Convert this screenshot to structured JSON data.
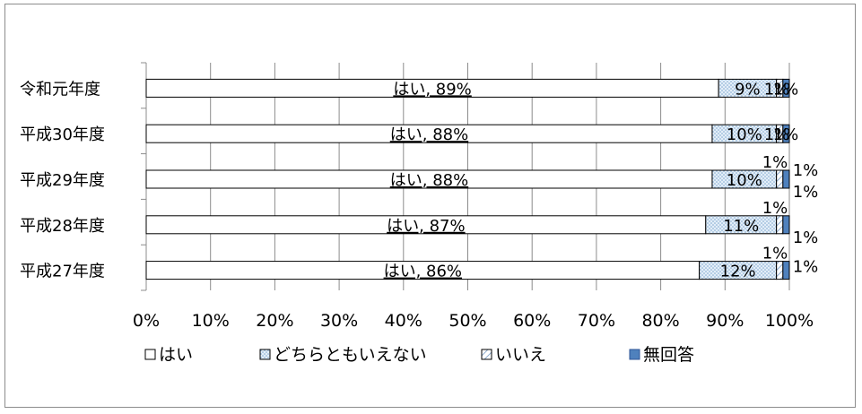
{
  "chart_data": {
    "type": "bar",
    "orientation": "horizontal",
    "stacked": "percent",
    "title": "",
    "xlabel": "",
    "ylabel": "",
    "xlim": [
      0,
      100
    ],
    "x_ticks": [
      "0%",
      "10%",
      "20%",
      "30%",
      "40%",
      "50%",
      "60%",
      "70%",
      "80%",
      "90%",
      "100%"
    ],
    "grid": "vertical",
    "legend_position": "bottom",
    "categories": [
      "令和元年度",
      "平成30年度",
      "平成29年度",
      "平成28年度",
      "平成27年度"
    ],
    "series": [
      {
        "name": "はい",
        "values": [
          89,
          88,
          88,
          87,
          86
        ],
        "labels": [
          "はい, 89%",
          "はい, 88%",
          "はい, 88%",
          "はい, 87%",
          "はい, 86%"
        ],
        "fill": "#ffffff",
        "pattern": "none"
      },
      {
        "name": "どちらともいえない",
        "values": [
          9,
          10,
          10,
          11,
          12
        ],
        "labels": [
          "9%",
          "10%",
          "10%",
          "11%",
          "12%"
        ],
        "fill": "#dbe9f5",
        "pattern": "dots"
      },
      {
        "name": "いいえ",
        "values": [
          1,
          1,
          1,
          1,
          1
        ],
        "labels": [
          "1%",
          "1%",
          "1%",
          "1%",
          "1%"
        ],
        "fill": "#eef4fa",
        "pattern": "hatch"
      },
      {
        "name": "無回答",
        "values": [
          1,
          1,
          1,
          1,
          1
        ],
        "labels": [
          "1%",
          "1%",
          "1%",
          "1%",
          "1%"
        ],
        "fill": "#4f81bd",
        "pattern": "none"
      }
    ]
  }
}
